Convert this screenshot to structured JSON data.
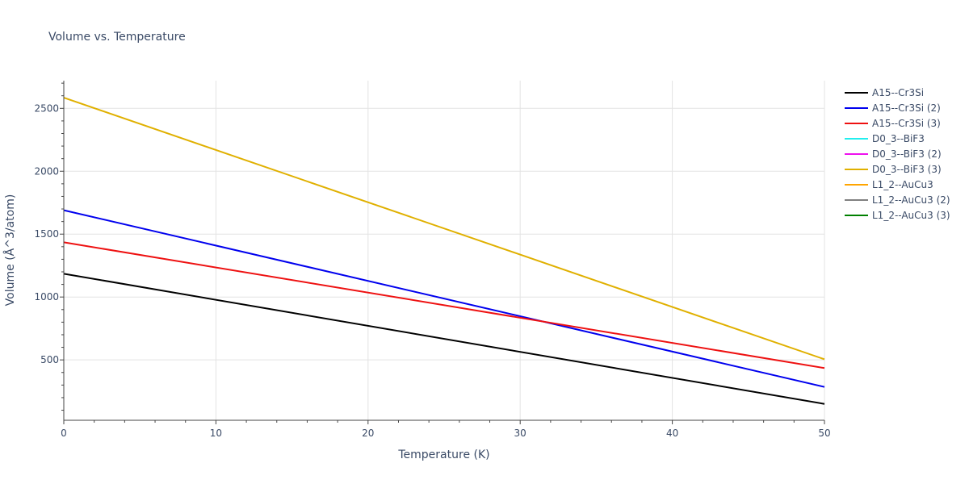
{
  "chart_data": {
    "type": "line",
    "title": "Volume vs. Temperature",
    "xlabel": "Temperature (K)",
    "ylabel": "Volume (Å^3/atom)",
    "xlim": [
      0,
      50
    ],
    "ylim": [
      20,
      2720
    ],
    "xticks": [
      0,
      10,
      20,
      30,
      40,
      50
    ],
    "yticks": [
      500,
      1000,
      1500,
      2000,
      2500
    ],
    "grid": true,
    "legend_position": "right",
    "series": [
      {
        "name": "A15--Cr3Si",
        "color": "#000000",
        "x": [
          0,
          50
        ],
        "y": [
          1185,
          150
        ]
      },
      {
        "name": "A15--Cr3Si (2)",
        "color": "#0000ee",
        "x": [
          0,
          50
        ],
        "y": [
          1690,
          285
        ]
      },
      {
        "name": "A15--Cr3Si (3)",
        "color": "#ee1111",
        "x": [
          0,
          50
        ],
        "y": [
          1435,
          435
        ]
      },
      {
        "name": "D0_3--BiF3",
        "color": "#22eeee",
        "x": [],
        "y": []
      },
      {
        "name": "D0_3--BiF3 (2)",
        "color": "#ee11ee",
        "x": [],
        "y": []
      },
      {
        "name": "D0_3--BiF3 (3)",
        "color": "#e0b000",
        "x": [
          0,
          50
        ],
        "y": [
          2585,
          505
        ]
      },
      {
        "name": "L1_2--AuCu3",
        "color": "#ffa500",
        "x": [],
        "y": []
      },
      {
        "name": "L1_2--AuCu3 (2)",
        "color": "#808080",
        "x": [],
        "y": []
      },
      {
        "name": "L1_2--AuCu3 (3)",
        "color": "#008000",
        "x": [],
        "y": []
      }
    ]
  }
}
